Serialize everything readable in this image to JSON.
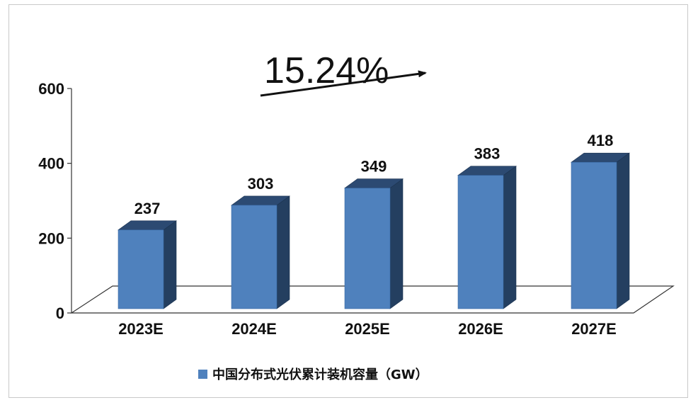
{
  "chart_data": {
    "type": "bar",
    "categories": [
      "2023E",
      "2024E",
      "2025E",
      "2026E",
      "2027E"
    ],
    "series": [
      {
        "name": "中国分布式光伏累计装机容量（GW）",
        "values": [
          237,
          303,
          349,
          383,
          418
        ]
      }
    ],
    "data_labels": [
      "237",
      "303",
      "349",
      "383",
      "418"
    ],
    "y_ticks": [
      0,
      200,
      400,
      600
    ],
    "ylim": [
      0,
      600
    ],
    "annotation": "15.24%",
    "legend_position": "bottom",
    "grid": false,
    "colors": {
      "bar_front": "#4f81bd",
      "bar_side": "#243f60",
      "bar_top": "#2c4a72",
      "legend_marker": "#4f81bd"
    }
  }
}
